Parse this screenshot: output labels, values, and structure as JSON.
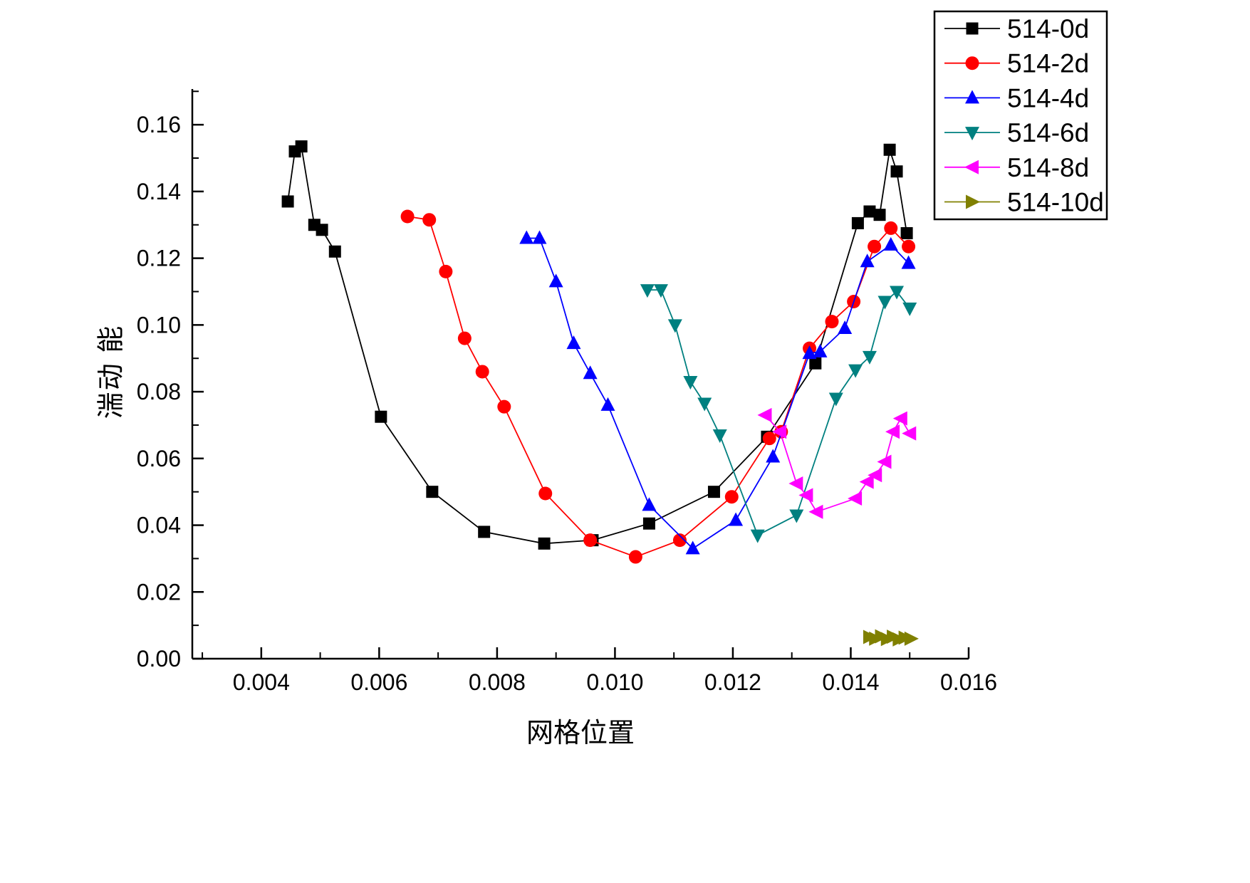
{
  "chart_data": {
    "type": "line",
    "title": "",
    "xlabel": "网格位置",
    "ylabel": "湍动 能",
    "grid": false,
    "legend_position": "top-right",
    "xlim": [
      0.00283,
      0.016
    ],
    "ylim": [
      0,
      0.1707
    ],
    "x_ticks": [
      0.004,
      0.006,
      0.008,
      0.01,
      0.012,
      0.014,
      0.016
    ],
    "x_tick_labels": [
      "0.004",
      "0.006",
      "0.008",
      "0.010",
      "0.012",
      "0.014",
      "0.016"
    ],
    "y_ticks": [
      0.0,
      0.02,
      0.04,
      0.06,
      0.08,
      0.1,
      0.12,
      0.14,
      0.16
    ],
    "y_tick_labels": [
      "0.00",
      "0.02",
      "0.04",
      "0.06",
      "0.08",
      "0.10",
      "0.12",
      "0.14",
      "0.16"
    ],
    "x_minor_step": 0.001,
    "y_minor_step": 0.01,
    "series": [
      {
        "name": "514-0d",
        "color": "#000000",
        "marker": "square",
        "points": [
          [
            0.00445,
            0.137
          ],
          [
            0.00457,
            0.152
          ],
          [
            0.00468,
            0.1535
          ],
          [
            0.0049,
            0.13
          ],
          [
            0.00503,
            0.1285
          ],
          [
            0.00525,
            0.122
          ],
          [
            0.00603,
            0.0725
          ],
          [
            0.0069,
            0.05
          ],
          [
            0.00778,
            0.038
          ],
          [
            0.0088,
            0.0345
          ],
          [
            0.00962,
            0.0355
          ],
          [
            0.01058,
            0.0405
          ],
          [
            0.01168,
            0.05
          ],
          [
            0.01258,
            0.0665
          ],
          [
            0.0134,
            0.0885
          ],
          [
            0.01412,
            0.1305
          ],
          [
            0.01432,
            0.134
          ],
          [
            0.01449,
            0.133
          ],
          [
            0.01466,
            0.1525
          ],
          [
            0.01478,
            0.146
          ],
          [
            0.01495,
            0.1275
          ]
        ]
      },
      {
        "name": "514-2d",
        "color": "#ff0000",
        "marker": "circle",
        "points": [
          [
            0.00648,
            0.1325
          ],
          [
            0.00685,
            0.1315
          ],
          [
            0.00713,
            0.116
          ],
          [
            0.00745,
            0.096
          ],
          [
            0.00775,
            0.086
          ],
          [
            0.00812,
            0.0755
          ],
          [
            0.00882,
            0.0495
          ],
          [
            0.00958,
            0.0355
          ],
          [
            0.01035,
            0.0305
          ],
          [
            0.0111,
            0.0355
          ],
          [
            0.01198,
            0.0485
          ],
          [
            0.01262,
            0.066
          ],
          [
            0.01282,
            0.068
          ],
          [
            0.0133,
            0.093
          ],
          [
            0.01368,
            0.101
          ],
          [
            0.01405,
            0.107
          ],
          [
            0.0144,
            0.1235
          ],
          [
            0.01468,
            0.129
          ],
          [
            0.01498,
            0.1235
          ]
        ]
      },
      {
        "name": "514-4d",
        "color": "#0000ff",
        "marker": "triangle-up",
        "points": [
          [
            0.0085,
            0.126
          ],
          [
            0.00872,
            0.126
          ],
          [
            0.009,
            0.113
          ],
          [
            0.0093,
            0.0945
          ],
          [
            0.00958,
            0.0855
          ],
          [
            0.00988,
            0.076
          ],
          [
            0.01058,
            0.046
          ],
          [
            0.01132,
            0.033
          ],
          [
            0.01205,
            0.0415
          ],
          [
            0.01268,
            0.0605
          ],
          [
            0.0133,
            0.0915
          ],
          [
            0.01348,
            0.092
          ],
          [
            0.0139,
            0.099
          ],
          [
            0.01428,
            0.119
          ],
          [
            0.01468,
            0.124
          ],
          [
            0.01498,
            0.1185
          ]
        ]
      },
      {
        "name": "514-6d",
        "color": "#008080",
        "marker": "triangle-down",
        "points": [
          [
            0.01055,
            0.1105
          ],
          [
            0.01078,
            0.1105
          ],
          [
            0.01102,
            0.1
          ],
          [
            0.01128,
            0.083
          ],
          [
            0.01152,
            0.0765
          ],
          [
            0.01178,
            0.067
          ],
          [
            0.01242,
            0.037
          ],
          [
            0.01308,
            0.043
          ],
          [
            0.01375,
            0.078
          ],
          [
            0.01408,
            0.0865
          ],
          [
            0.01432,
            0.0905
          ],
          [
            0.01458,
            0.107
          ],
          [
            0.01478,
            0.11
          ],
          [
            0.015,
            0.105
          ]
        ]
      },
      {
        "name": "514-8d",
        "color": "#ff00ff",
        "marker": "triangle-left",
        "points": [
          [
            0.01255,
            0.073
          ],
          [
            0.0128,
            0.068
          ],
          [
            0.01308,
            0.0525
          ],
          [
            0.01325,
            0.049
          ],
          [
            0.01342,
            0.044
          ],
          [
            0.01408,
            0.048
          ],
          [
            0.01428,
            0.053
          ],
          [
            0.01442,
            0.055
          ],
          [
            0.01458,
            0.059
          ],
          [
            0.01472,
            0.068
          ],
          [
            0.01485,
            0.072
          ],
          [
            0.015,
            0.0675
          ]
        ]
      },
      {
        "name": "514-10d",
        "color": "#808000",
        "marker": "triangle-right",
        "points": [
          [
            0.01432,
            0.0065
          ],
          [
            0.01442,
            0.006
          ],
          [
            0.01452,
            0.0067
          ],
          [
            0.01462,
            0.0059
          ],
          [
            0.01472,
            0.0066
          ],
          [
            0.01482,
            0.0058
          ],
          [
            0.01492,
            0.0063
          ],
          [
            0.01502,
            0.006
          ]
        ]
      }
    ]
  }
}
